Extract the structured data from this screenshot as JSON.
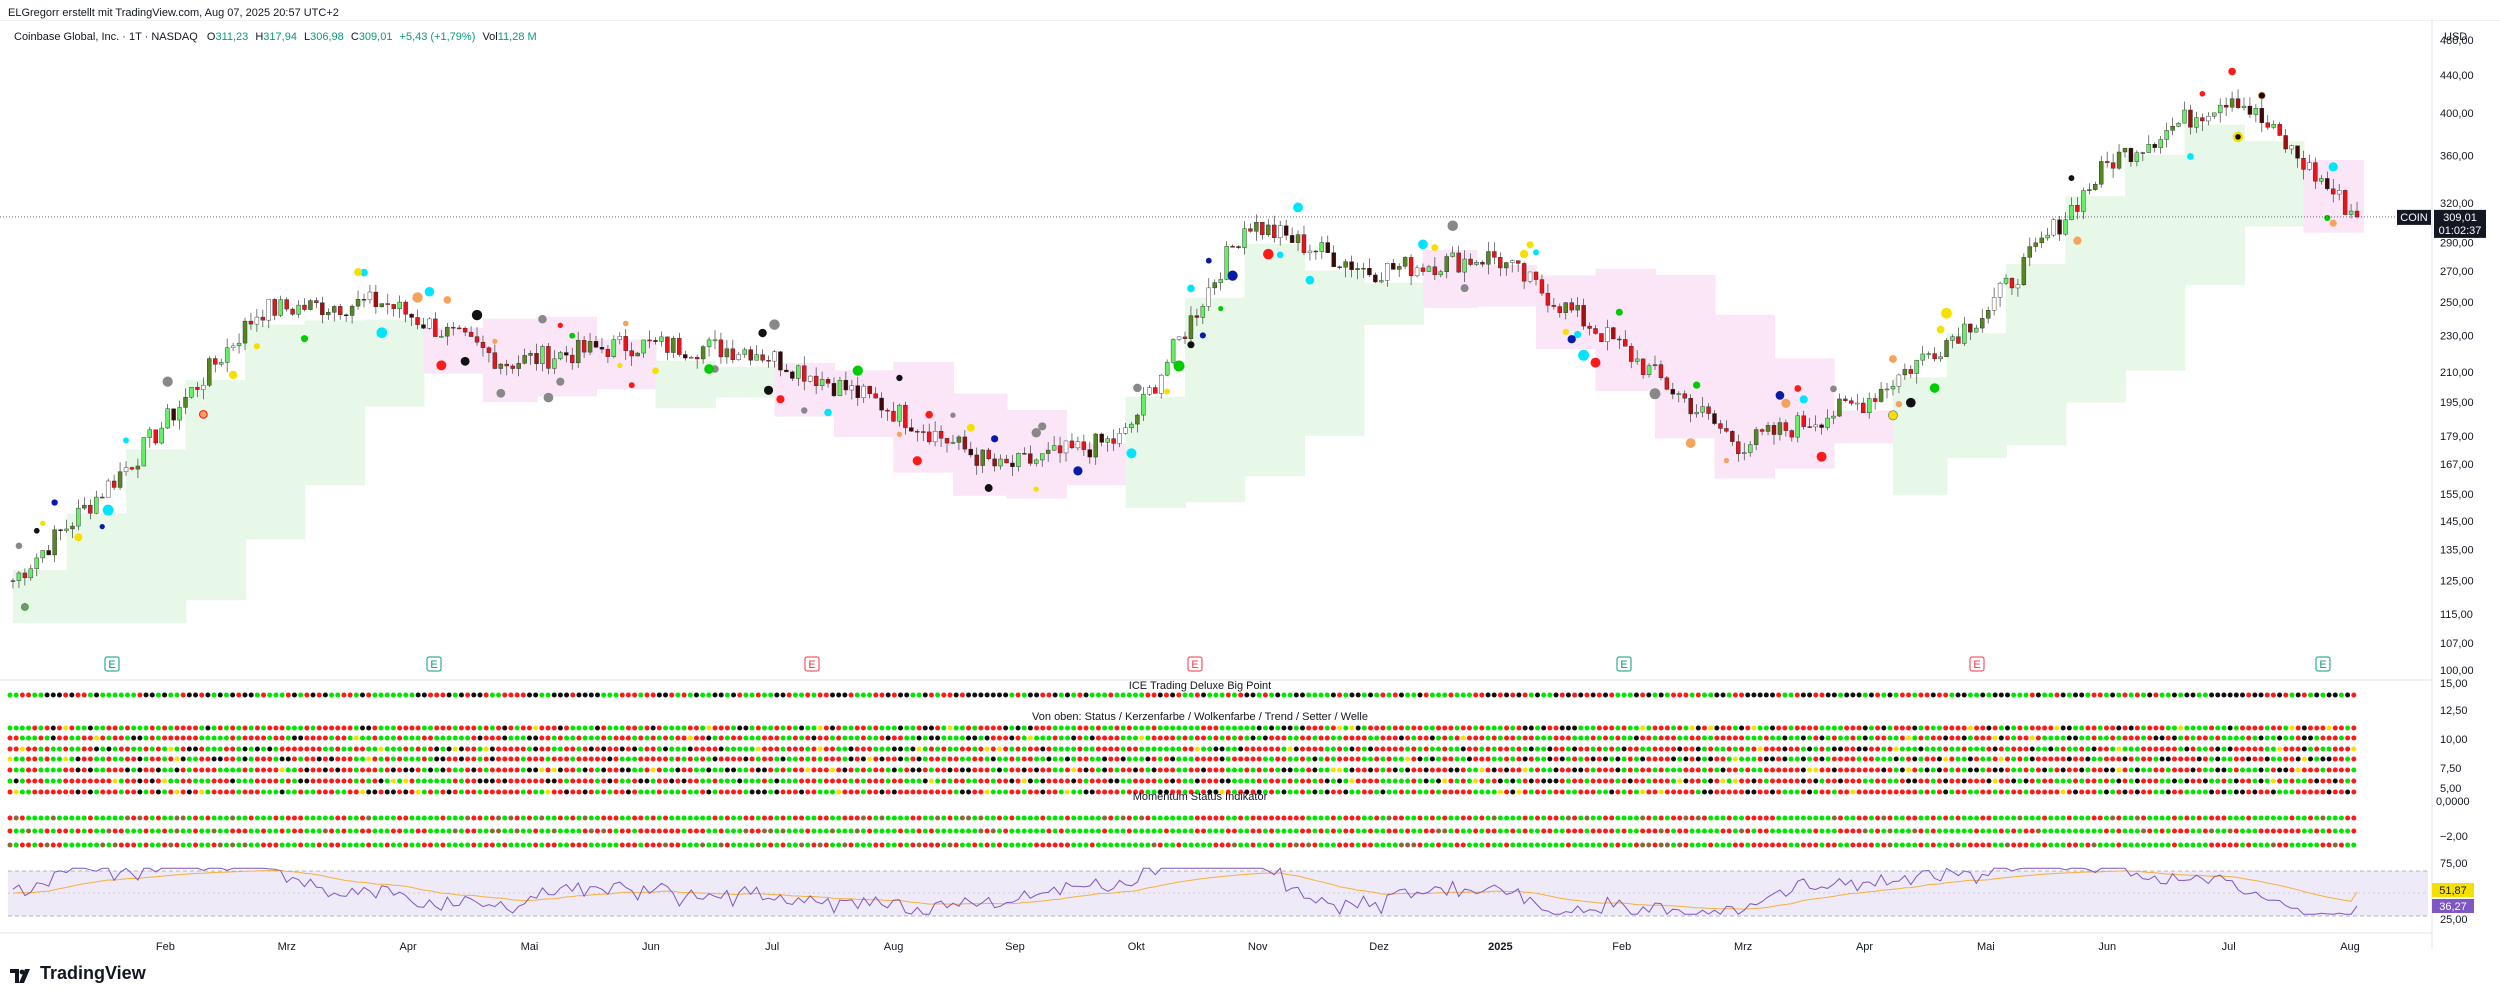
{
  "header": {
    "author_line": "ELGregorr erstellt mit TradingView.com, Aug 07, 2025 20:57 UTC+2",
    "symbol_title": "Coinbase Global, Inc. · 1T · NASDAQ",
    "ohlc": [
      {
        "label": "O",
        "value": "311,23"
      },
      {
        "label": "H",
        "value": "317,94"
      },
      {
        "label": "L",
        "value": "306,98"
      },
      {
        "label": "C",
        "value": "309,01"
      }
    ],
    "change": "+5,43 (+1,79%)",
    "volume_label": "Vol",
    "volume_value": "11,28 M"
  },
  "price_axis": {
    "currency": "USD",
    "ticks": [
      "480,00",
      "440,00",
      "400,00",
      "360,00",
      "320,00",
      "290,00",
      "270,00",
      "250,00",
      "230,00",
      "210,00",
      "195,00",
      "179,00",
      "167,00",
      "155,00",
      "145,00",
      "135,00",
      "125,00",
      "115,00",
      "107,00",
      "100,00"
    ],
    "last_price_symbol": "COIN",
    "last_price": "309,01",
    "countdown": "01:02:37"
  },
  "indicator_axis": {
    "ticks": [
      "15,00",
      "12,50",
      "10,00",
      "7,50",
      "5,00",
      "0,0000",
      "−2,00",
      "75,00",
      "25,00"
    ],
    "badge_1": "51,87",
    "badge_2": "36,27"
  },
  "panels": {
    "big_point_title": "ICE Trading Deluxe Big Point",
    "rows_title": "Von oben: Status / Kerzenfarbe / Wolkenfarbe / Trend / Setter / Welle",
    "momentum_title": "Momentum Status Indikator"
  },
  "time_axis": [
    "Feb",
    "Mrz",
    "Apr",
    "Mai",
    "Jun",
    "Jul",
    "Aug",
    "Sep",
    "Okt",
    "Nov",
    "Dez",
    "2025",
    "Feb",
    "Mrz",
    "Apr",
    "Mai",
    "Jun",
    "Jul",
    "Aug"
  ],
  "earnings_marker_label": "E",
  "brand": "TradingView",
  "colors": {
    "up": "#089981",
    "down": "#f23645",
    "cloud_up": "#e8f8e8",
    "cloud_down": "#fbe6f8",
    "dot_green": "#00e600",
    "dot_red": "#ff1a1a",
    "dot_black": "#111111",
    "dot_yellow": "#f5e000",
    "rsi_line": "#7e57c2",
    "rsi_ma": "#f5b041",
    "rsi_band": "#efeaf8",
    "badge_1_bg": "#f5e000",
    "badge_2_bg": "#7e57c2"
  },
  "chart_data": {
    "type": "candlestick",
    "title": "Coinbase Global, Inc. · 1T · NASDAQ",
    "y_scale": "log",
    "ylim": [
      100,
      480
    ],
    "series_approx_close": [
      {
        "x": "Jan 2024",
        "y": 125
      },
      {
        "x": "Feb 2024",
        "y": 170
      },
      {
        "x": "Mrz 2024",
        "y": 245
      },
      {
        "x": "Apr 2024",
        "y": 250
      },
      {
        "x": "Mai 2024",
        "y": 215
      },
      {
        "x": "Jun 2024",
        "y": 225
      },
      {
        "x": "Jul 2024",
        "y": 222
      },
      {
        "x": "Aug 2024",
        "y": 195
      },
      {
        "x": "Sep 2024",
        "y": 165
      },
      {
        "x": "Okt 2024",
        "y": 178
      },
      {
        "x": "Nov 2024",
        "y": 305
      },
      {
        "x": "Dez 2024",
        "y": 270
      },
      {
        "x": "Jan 2025",
        "y": 280
      },
      {
        "x": "Feb 2025",
        "y": 225
      },
      {
        "x": "Mrz 2025",
        "y": 175
      },
      {
        "x": "Apr 2025",
        "y": 195
      },
      {
        "x": "Mai 2025",
        "y": 245
      },
      {
        "x": "Jun 2025",
        "y": 355
      },
      {
        "x": "Jul 2025",
        "y": 420
      },
      {
        "x": "Aug 2025",
        "y": 309
      }
    ],
    "rsi_range": [
      25,
      75
    ],
    "rsi_last": 36.27,
    "rsi_ma_last": 51.87
  }
}
